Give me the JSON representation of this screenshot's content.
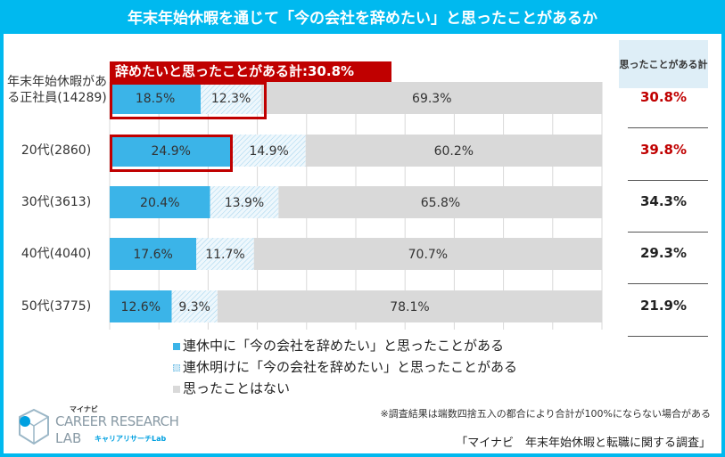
{
  "title": "年末年始休暇を通じて「今の会社を辞めたい」と思ったことがあるか",
  "right_header": "思ったことがある計",
  "highlight_label": "辞めたいと思ったことがある計:30.8%",
  "note": "※調査結果は端数四捨五入の都合により合計が100%にならない場合がある",
  "source": "「マイナビ　年末年始休暇と転職に関する調査」",
  "logo": {
    "brand": "マイナビ",
    "name1": "CAREER RESEARCH",
    "name2": "LAB",
    "sub": "キャリアリサーチLab"
  },
  "colors": {
    "title_bg": "#00b9ef",
    "during": "#3bb4e8",
    "after": "#e8f4fa",
    "none": "#d9d9d9",
    "highlight": "#c00000"
  },
  "totals": [
    {
      "label": "30.8%",
      "color": "#c00000"
    },
    {
      "label": "39.8%",
      "color": "#c00000"
    },
    {
      "label": "34.3%",
      "color": "#222222"
    },
    {
      "label": "29.3%",
      "color": "#222222"
    },
    {
      "label": "21.9%",
      "color": "#222222"
    }
  ],
  "chart_data": {
    "type": "bar",
    "orientation": "horizontal-stacked",
    "categories": [
      "年末年始休暇がある正社員(14289)",
      "20代(2860)",
      "30代(3613)",
      "40代(4040)",
      "50代(3775)"
    ],
    "series": [
      {
        "name": "連休中に「今の会社を辞めたい」と思ったことがある",
        "values": [
          18.5,
          24.9,
          20.4,
          17.6,
          12.6
        ]
      },
      {
        "name": "連休明けに「今の会社を辞めたい」と思ったことがある",
        "values": [
          12.3,
          14.9,
          13.9,
          11.7,
          9.3
        ]
      },
      {
        "name": "思ったことはない",
        "values": [
          69.3,
          60.2,
          65.8,
          70.7,
          78.1
        ]
      }
    ],
    "xlim": [
      0,
      100
    ],
    "grid": true,
    "legend": "bottom"
  }
}
